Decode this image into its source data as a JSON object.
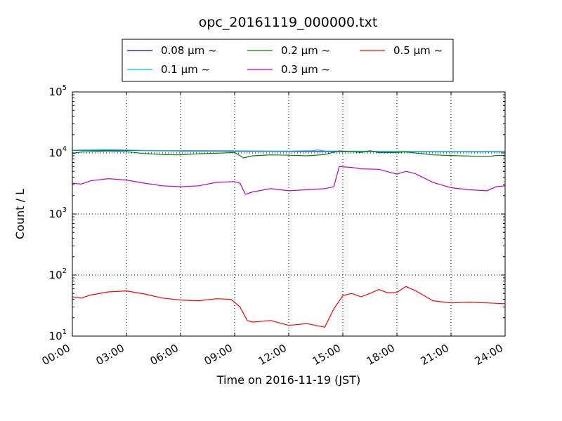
{
  "chart_data": {
    "type": "line",
    "title": "opc_20161119_000000.txt",
    "xlabel": "Time on 2016-11-19 (JST)",
    "ylabel": "Count / L",
    "y_scale": "log",
    "xlim": [
      0,
      24
    ],
    "ylim": [
      10,
      100000
    ],
    "grid": true,
    "legend_placement": "top-center, above plot",
    "x_ticks": [
      {
        "value": 0,
        "label": "00:00"
      },
      {
        "value": 3,
        "label": "03:00"
      },
      {
        "value": 6,
        "label": "06:00"
      },
      {
        "value": 9,
        "label": "09:00"
      },
      {
        "value": 12,
        "label": "12:00"
      },
      {
        "value": 15,
        "label": "15:00"
      },
      {
        "value": 18,
        "label": "18:00"
      },
      {
        "value": 21,
        "label": "21:00"
      },
      {
        "value": 24,
        "label": "24:00"
      }
    ],
    "y_ticks": [
      {
        "value": 10,
        "base": "10",
        "exp": "1"
      },
      {
        "value": 100,
        "base": "10",
        "exp": "2"
      },
      {
        "value": 1000,
        "base": "10",
        "exp": "3"
      },
      {
        "value": 10000,
        "base": "10",
        "exp": "4"
      },
      {
        "value": 100000,
        "base": "10",
        "exp": "5"
      }
    ],
    "series": [
      {
        "name": "0.08 μm ~",
        "color": "#0000ff",
        "points": [
          [
            0,
            11000
          ],
          [
            2,
            11100
          ],
          [
            4,
            10900
          ],
          [
            6,
            10800
          ],
          [
            8,
            10800
          ],
          [
            9,
            10700
          ],
          [
            10,
            10650
          ],
          [
            12,
            10600
          ],
          [
            13.5,
            10600
          ],
          [
            15,
            10550
          ],
          [
            18,
            10500
          ],
          [
            21,
            10450
          ],
          [
            24,
            10450
          ]
        ]
      },
      {
        "name": "0.1 μm ~",
        "color": "#00bfbf",
        "points": [
          [
            0,
            11100
          ],
          [
            2,
            11300
          ],
          [
            4,
            11000
          ],
          [
            6,
            10950
          ],
          [
            8,
            10900
          ],
          [
            9,
            10850
          ],
          [
            10,
            10800
          ],
          [
            12,
            10750
          ],
          [
            13.3,
            10900
          ],
          [
            13.6,
            11200
          ],
          [
            14,
            10800
          ],
          [
            15,
            10700
          ],
          [
            18,
            10600
          ],
          [
            21,
            10550
          ],
          [
            24,
            10550
          ]
        ]
      },
      {
        "name": "0.2 μm ~",
        "color": "#008000",
        "points": [
          [
            0,
            9800
          ],
          [
            0.5,
            10400
          ],
          [
            2,
            10800
          ],
          [
            3,
            10500
          ],
          [
            4,
            9800
          ],
          [
            5,
            9400
          ],
          [
            6,
            9300
          ],
          [
            7,
            9700
          ],
          [
            8,
            9900
          ],
          [
            9,
            10200
          ],
          [
            9.5,
            8300
          ],
          [
            10,
            9000
          ],
          [
            11,
            9300
          ],
          [
            12,
            9200
          ],
          [
            13,
            9000
          ],
          [
            14,
            9400
          ],
          [
            14.8,
            10800
          ],
          [
            15.5,
            10500
          ],
          [
            16,
            10200
          ],
          [
            16.5,
            10900
          ],
          [
            17,
            10100
          ],
          [
            18,
            10200
          ],
          [
            18.5,
            10400
          ],
          [
            19,
            10000
          ],
          [
            20,
            9300
          ],
          [
            21,
            9100
          ],
          [
            22,
            8900
          ],
          [
            23,
            8700
          ],
          [
            23.5,
            9100
          ],
          [
            24,
            9200
          ]
        ]
      },
      {
        "name": "0.3 μm ~",
        "color": "#bf00bf",
        "points": [
          [
            0,
            3200
          ],
          [
            0.5,
            3100
          ],
          [
            1,
            3500
          ],
          [
            2,
            3800
          ],
          [
            3,
            3600
          ],
          [
            4,
            3200
          ],
          [
            5,
            2900
          ],
          [
            6,
            2800
          ],
          [
            7,
            2900
          ],
          [
            8,
            3300
          ],
          [
            9,
            3400
          ],
          [
            9.3,
            3200
          ],
          [
            9.6,
            2100
          ],
          [
            10,
            2300
          ],
          [
            11,
            2600
          ],
          [
            12,
            2400
          ],
          [
            13,
            2500
          ],
          [
            14,
            2600
          ],
          [
            14.5,
            2800
          ],
          [
            14.8,
            6000
          ],
          [
            15.5,
            5800
          ],
          [
            16,
            5500
          ],
          [
            17,
            5400
          ],
          [
            18,
            4500
          ],
          [
            18.5,
            5000
          ],
          [
            19,
            4600
          ],
          [
            20,
            3300
          ],
          [
            21,
            2700
          ],
          [
            22,
            2500
          ],
          [
            23,
            2400
          ],
          [
            23.5,
            2800
          ],
          [
            24,
            2900
          ]
        ]
      },
      {
        "name": "0.5 μm ~",
        "color": "#ff0000",
        "points": [
          [
            0,
            44
          ],
          [
            0.5,
            42
          ],
          [
            1,
            47
          ],
          [
            2,
            53
          ],
          [
            3,
            55
          ],
          [
            4,
            49
          ],
          [
            5,
            42
          ],
          [
            6,
            39
          ],
          [
            7,
            38
          ],
          [
            8,
            41
          ],
          [
            8.8,
            40
          ],
          [
            9.3,
            30
          ],
          [
            9.7,
            18
          ],
          [
            10,
            17
          ],
          [
            11,
            18
          ],
          [
            12,
            15
          ],
          [
            13,
            16
          ],
          [
            14,
            14
          ],
          [
            14.5,
            28
          ],
          [
            15,
            46
          ],
          [
            15.5,
            50
          ],
          [
            16,
            44
          ],
          [
            16.5,
            50
          ],
          [
            17,
            58
          ],
          [
            17.5,
            51
          ],
          [
            18,
            52
          ],
          [
            18.5,
            65
          ],
          [
            19,
            56
          ],
          [
            20,
            38
          ],
          [
            21,
            35
          ],
          [
            22,
            36
          ],
          [
            23,
            35
          ],
          [
            24,
            34
          ]
        ]
      }
    ]
  }
}
